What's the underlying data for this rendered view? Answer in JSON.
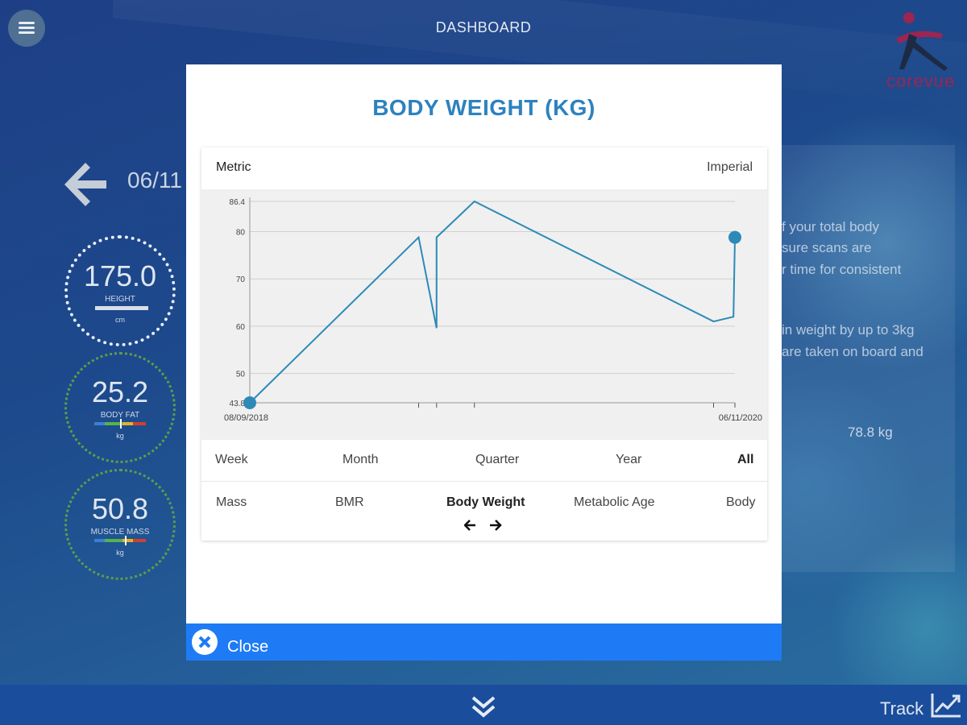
{
  "header": {
    "title": "DASHBOARD",
    "logo_text": "corevue"
  },
  "background": {
    "date_fragment": "06/11",
    "gauges": [
      {
        "value": "175.0",
        "label": "HEIGHT",
        "unit": "cm"
      },
      {
        "value": "25.2",
        "label": "BODY FAT",
        "unit": "kg"
      },
      {
        "value": "50.8",
        "label": "MUSCLE MASS",
        "unit": "kg"
      }
    ],
    "text_lines": [
      "f your total body",
      "sure scans are",
      "r time for consistent",
      "in weight by up to 3kg",
      "are taken on board and"
    ],
    "value": "78.8 kg"
  },
  "modal": {
    "title": "BODY WEIGHT (KG)",
    "unit_toggle": {
      "metric": "Metric",
      "imperial": "Imperial"
    },
    "ranges": [
      "Week",
      "Month",
      "Quarter",
      "Year",
      "All"
    ],
    "selected_range": "All",
    "metrics": [
      "Mass",
      "BMR",
      "Body Weight",
      "Metabolic Age",
      "Body"
    ],
    "selected_metric": "Body Weight",
    "close_label": "Close"
  },
  "chart_data": {
    "type": "line",
    "series": [
      {
        "values": [
          43.8,
          78.8,
          59.6,
          78.8,
          86.4,
          61.0,
          62.0,
          78.8
        ]
      }
    ],
    "ylim": [
      43.8,
      86.4
    ],
    "y_ticks": [
      "86.4",
      "80",
      "70",
      "60",
      "50",
      "43.8"
    ],
    "x_labels": [
      "08/09/2018",
      "06/11/2020"
    ],
    "grid": true
  },
  "bottom_bar": {
    "track_label": "Track"
  }
}
